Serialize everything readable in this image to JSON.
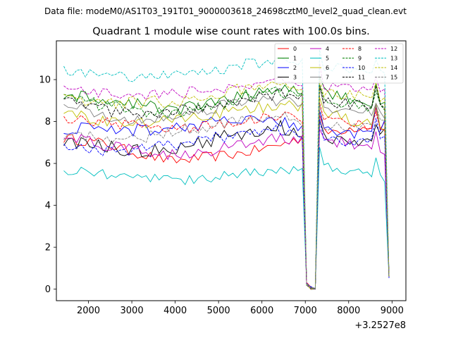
{
  "suptitle": "Data file: modeM0/AS1T03_191T01_9000003618_24698cztM0_level2_quad_clean.evt",
  "chart_data": {
    "type": "line",
    "title": "Quadrant 1 module wise count rates with 100.0s bins.",
    "xlabel": "",
    "ylabel": "",
    "x_offset_label": "+3.2527e8",
    "xlim": [
      1260,
      9320
    ],
    "ylim": [
      -0.55,
      11.85
    ],
    "x_ticks": [
      2000,
      3000,
      4000,
      5000,
      6000,
      7000,
      8000,
      9000
    ],
    "y_ticks": [
      0,
      2,
      4,
      6,
      8,
      10
    ],
    "x_start": 1430,
    "x_step": 100,
    "point_count": 76,
    "dip_positions": [
      7000,
      7100,
      7200,
      8900
    ],
    "dip_values": [
      0.25,
      0.05,
      0.05,
      0.6
    ],
    "legend_position": "top-right",
    "series": [
      {
        "name": "0",
        "color": "#ff0000",
        "dash": "solid",
        "base": [
          7.2,
          7.0,
          6.5,
          6.1,
          6.3,
          6.5,
          6.9,
          7.4,
          7.7,
          7.9
        ],
        "jitter": 0.25
      },
      {
        "name": "1",
        "color": "#008000",
        "dash": "solid",
        "base": [
          9.3,
          9.0,
          8.8,
          8.6,
          8.8,
          9.2,
          9.6,
          9.5,
          9.0,
          8.7
        ],
        "jitter": 0.3
      },
      {
        "name": "2",
        "color": "#0000ff",
        "dash": "solid",
        "base": [
          7.6,
          7.7,
          7.6,
          7.7,
          7.9,
          8.1,
          8.0,
          7.5,
          7.4,
          7.9
        ],
        "jitter": 0.3
      },
      {
        "name": "3",
        "color": "#000000",
        "dash": "solid",
        "base": [
          7.0,
          6.8,
          6.6,
          6.7,
          7.1,
          7.5,
          7.7,
          7.3,
          7.0,
          7.4
        ],
        "jitter": 0.35
      },
      {
        "name": "4",
        "color": "#bf00bf",
        "dash": "solid",
        "base": [
          7.3,
          6.9,
          6.6,
          6.4,
          6.6,
          6.9,
          7.2,
          7.1,
          6.9,
          6.7
        ],
        "jitter": 0.3
      },
      {
        "name": "5",
        "color": "#00bfbf",
        "dash": "solid",
        "base": [
          5.7,
          5.5,
          5.3,
          5.2,
          5.3,
          5.5,
          5.7,
          5.9,
          5.6,
          5.3
        ],
        "jitter": 0.25
      },
      {
        "name": "6",
        "color": "#bfbf00",
        "dash": "solid",
        "base": [
          8.4,
          8.1,
          7.9,
          8.0,
          8.3,
          8.6,
          8.8,
          8.5,
          8.0,
          7.8
        ],
        "jitter": 0.3
      },
      {
        "name": "7",
        "color": "#808080",
        "dash": "solid",
        "base": [
          8.8,
          8.4,
          8.1,
          8.3,
          8.6,
          8.9,
          9.0,
          8.7,
          8.4,
          8.3
        ],
        "jitter": 0.3
      },
      {
        "name": "8",
        "color": "#ff0000",
        "dash": "dashed",
        "base": [
          8.2,
          8.0,
          7.8,
          7.6,
          7.8,
          8.1,
          8.3,
          8.1,
          7.9,
          7.7
        ],
        "jitter": 0.25
      },
      {
        "name": "9",
        "color": "#008000",
        "dash": "dashed",
        "base": [
          9.2,
          8.8,
          8.5,
          8.4,
          8.7,
          9.1,
          9.4,
          9.2,
          8.8,
          8.6
        ],
        "jitter": 0.3
      },
      {
        "name": "10",
        "color": "#0000ff",
        "dash": "dashed",
        "base": [
          6.8,
          6.6,
          6.6,
          6.9,
          7.2,
          7.4,
          7.6,
          7.2,
          7.0,
          7.4
        ],
        "jitter": 0.3
      },
      {
        "name": "11",
        "color": "#000000",
        "dash": "dashed",
        "base": [
          8.9,
          8.6,
          8.3,
          8.5,
          8.8,
          9.1,
          9.3,
          9.0,
          8.8,
          8.6
        ],
        "jitter": 0.3
      },
      {
        "name": "12",
        "color": "#bf00bf",
        "dash": "dashed",
        "base": [
          9.5,
          9.4,
          9.3,
          9.3,
          9.5,
          9.8,
          9.9,
          9.7,
          9.6,
          9.5
        ],
        "jitter": 0.3
      },
      {
        "name": "13",
        "color": "#00bfbf",
        "dash": "dashed",
        "base": [
          10.4,
          10.2,
          10.1,
          10.2,
          10.4,
          10.7,
          10.9,
          10.6,
          10.4,
          10.2
        ],
        "jitter": 0.3
      },
      {
        "name": "14",
        "color": "#bfbf00",
        "dash": "dashed",
        "base": [
          9.0,
          8.9,
          8.9,
          9.0,
          9.3,
          9.6,
          9.7,
          9.4,
          9.2,
          9.0
        ],
        "jitter": 0.3
      },
      {
        "name": "15",
        "color": "#808080",
        "dash": "dashed",
        "base": [
          7.4,
          7.2,
          7.2,
          7.5,
          7.8,
          8.1,
          8.2,
          7.9,
          7.7,
          7.9
        ],
        "jitter": 0.3
      }
    ]
  }
}
